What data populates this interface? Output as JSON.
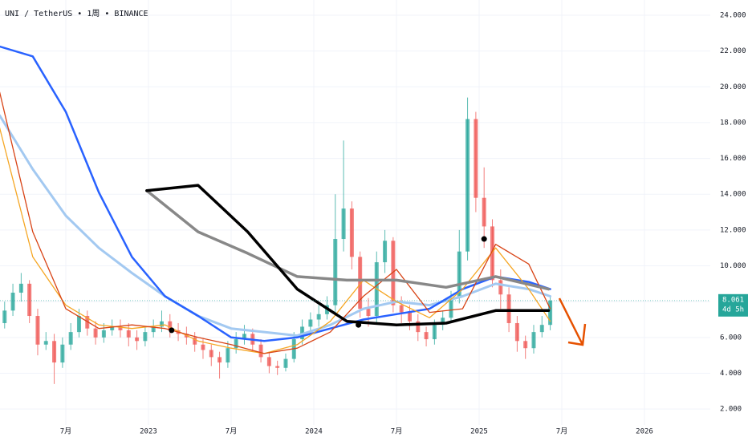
{
  "chart_data": {
    "type": "candlestick",
    "title": "UNI / TetherUS • 1周 • BINANCE",
    "up_color": "#26a69a",
    "down_color": "#ef5350",
    "candles": {
      "x": [
        2022.13,
        2022.18,
        2022.23,
        2022.28,
        2022.33,
        2022.38,
        2022.43,
        2022.48,
        2022.53,
        2022.58,
        2022.63,
        2022.68,
        2022.73,
        2022.78,
        2022.83,
        2022.88,
        2022.93,
        2022.98,
        2023.03,
        2023.08,
        2023.13,
        2023.18,
        2023.23,
        2023.28,
        2023.33,
        2023.38,
        2023.43,
        2023.48,
        2023.53,
        2023.58,
        2023.63,
        2023.68,
        2023.73,
        2023.78,
        2023.83,
        2023.88,
        2023.93,
        2023.98,
        2024.03,
        2024.08,
        2024.13,
        2024.18,
        2024.23,
        2024.28,
        2024.33,
        2024.38,
        2024.43,
        2024.48,
        2024.53,
        2024.58,
        2024.63,
        2024.68,
        2024.73,
        2024.78,
        2024.83,
        2024.88,
        2024.93,
        2024.98,
        2025.03,
        2025.08,
        2025.13,
        2025.18,
        2025.23,
        2025.28,
        2025.33,
        2025.38,
        2025.43
      ],
      "open": [
        6.8,
        7.5,
        8.5,
        9,
        7.2,
        5.6,
        5.8,
        4.6,
        5.6,
        6.3,
        7.2,
        6.5,
        6.0,
        6.4,
        6.6,
        6.4,
        6.0,
        5.8,
        6.3,
        6.6,
        6.9,
        6.4,
        6.2,
        6.0,
        5.6,
        5.3,
        4.9,
        4.6,
        5.4,
        5.9,
        6.2,
        5.6,
        4.9,
        4.4,
        4.3,
        4.8,
        5.9,
        6.6,
        7.0,
        7.3,
        7.8,
        11.5,
        13.2,
        10.5,
        7.6,
        7.2,
        10.2,
        11.4,
        7.8,
        7.4,
        6.9,
        6.3,
        5.9,
        6.7,
        7.1,
        8.2,
        10.8,
        18.2,
        13.8,
        12.2,
        9.2,
        8.4,
        6.8,
        5.8,
        5.4,
        6.3,
        6.7
      ],
      "high": [
        8.0,
        9.0,
        9.6,
        9.2,
        7.6,
        6.3,
        6.2,
        6.0,
        6.8,
        7.6,
        7.5,
        6.9,
        6.8,
        7.0,
        7.0,
        6.8,
        6.4,
        6.6,
        7.0,
        7.5,
        7.3,
        6.8,
        6.6,
        6.3,
        5.9,
        5.6,
        5.2,
        5.8,
        6.3,
        6.7,
        6.5,
        5.9,
        5.2,
        4.7,
        5.1,
        6.3,
        7.0,
        7.4,
        7.8,
        8.3,
        14.0,
        17.0,
        13.6,
        10.8,
        8.2,
        10.8,
        12.0,
        11.6,
        8.3,
        7.8,
        7.3,
        6.6,
        7.0,
        7.5,
        8.6,
        12.0,
        19.4,
        18.6,
        15.5,
        12.6,
        9.8,
        8.8,
        7.2,
        6.1,
        6.7,
        7.2,
        8.3
      ],
      "low": [
        6.5,
        7.2,
        8.0,
        6.8,
        5.0,
        5.3,
        3.4,
        4.3,
        5.3,
        6.0,
        6.1,
        5.6,
        5.7,
        6.1,
        6.0,
        5.5,
        5.3,
        5.5,
        6.0,
        6.3,
        6.0,
        5.8,
        5.6,
        5.2,
        4.8,
        4.4,
        3.7,
        4.3,
        5.1,
        5.6,
        5.2,
        4.6,
        4.0,
        3.9,
        4.1,
        4.6,
        5.6,
        6.2,
        6.6,
        7.0,
        7.4,
        10.8,
        9.8,
        7.1,
        6.6,
        6.8,
        9.6,
        7.4,
        6.8,
        6.4,
        5.8,
        5.5,
        5.6,
        6.4,
        6.8,
        7.9,
        10.3,
        13.0,
        11.0,
        8.8,
        7.6,
        6.3,
        5.2,
        4.8,
        5.1,
        6.0,
        6.4
      ],
      "close": [
        7.5,
        8.5,
        9,
        7.2,
        5.6,
        5.8,
        4.6,
        5.6,
        6.3,
        7.2,
        6.5,
        6.0,
        6.4,
        6.6,
        6.4,
        6.0,
        5.8,
        6.3,
        6.6,
        6.9,
        6.4,
        6.2,
        6.0,
        5.6,
        5.3,
        4.9,
        4.6,
        5.4,
        5.9,
        6.2,
        5.6,
        4.9,
        4.4,
        4.3,
        4.8,
        5.9,
        6.6,
        7.0,
        7.3,
        7.8,
        11.5,
        13.2,
        10.5,
        7.6,
        7.2,
        10.2,
        11.4,
        7.8,
        7.4,
        6.9,
        6.3,
        5.9,
        6.7,
        7.1,
        8.2,
        10.8,
        18.2,
        13.8,
        12.2,
        9.2,
        8.4,
        6.8,
        5.8,
        5.4,
        6.3,
        6.7,
        8.061
      ]
    },
    "series": [
      {
        "color": "#a3c9f1",
        "width": 3,
        "x": [
          2022.1,
          2022.3,
          2022.5,
          2022.7,
          2022.9,
          2023.1,
          2023.3,
          2023.5,
          2023.7,
          2023.9,
          2024.1,
          2024.3,
          2024.5,
          2024.7,
          2024.9,
          2025.1,
          2025.3,
          2025.43
        ],
        "values": [
          18.4,
          15.4,
          12.8,
          11,
          9.6,
          8.3,
          7.2,
          6.5,
          6.3,
          6.1,
          6.7,
          7.6,
          8.0,
          7.8,
          8.3,
          9.0,
          8.7,
          8.3
        ]
      },
      {
        "color": "#2962ff",
        "width": 2.5,
        "x": [
          2022.1,
          2022.3,
          2022.5,
          2022.7,
          2022.9,
          2023.1,
          2023.3,
          2023.5,
          2023.7,
          2023.9,
          2024.1,
          2024.3,
          2024.5,
          2024.7,
          2024.9,
          2025.1,
          2025.3,
          2025.43
        ],
        "values": [
          22.25,
          21.7,
          18.6,
          14.1,
          10.5,
          8.3,
          7.2,
          6.0,
          5.8,
          6.0,
          6.5,
          7.0,
          7.3,
          7.6,
          8.7,
          9.4,
          9.1,
          8.7
        ]
      },
      {
        "color": "#f5a623",
        "width": 1.3,
        "x": [
          2022.1,
          2022.3,
          2022.5,
          2022.7,
          2022.9,
          2023.1,
          2023.3,
          2023.5,
          2023.7,
          2023.9,
          2024.1,
          2024.3,
          2024.5,
          2024.7,
          2024.9,
          2025.1,
          2025.3,
          2025.43
        ],
        "values": [
          17.7,
          10.5,
          7.8,
          6.7,
          6.5,
          6.7,
          5.8,
          5.4,
          5.1,
          5.6,
          6.9,
          9.2,
          8.0,
          7.1,
          8.7,
          11.0,
          8.7,
          6.9
        ]
      },
      {
        "color": "#d84315",
        "width": 1.3,
        "x": [
          2022.1,
          2022.3,
          2022.5,
          2022.7,
          2022.9,
          2023.1,
          2023.3,
          2023.5,
          2023.7,
          2023.9,
          2024.1,
          2024.3,
          2024.5,
          2024.7,
          2024.9,
          2025.1,
          2025.3,
          2025.43
        ],
        "values": [
          19.7,
          11.9,
          7.6,
          6.5,
          6.7,
          6.5,
          6.0,
          5.6,
          5.1,
          5.4,
          6.3,
          8.3,
          9.8,
          7.4,
          7.6,
          11.2,
          10.1,
          7.6
        ]
      },
      {
        "color": "#888888",
        "width": 3.5,
        "x": [
          2022.99,
          2023.3,
          2023.6,
          2023.9,
          2024.2,
          2024.5,
          2024.8,
          2025.1,
          2025.42
        ],
        "values": [
          14.2,
          11.9,
          10.7,
          9.4,
          9.2,
          9.2,
          8.8,
          9.4,
          8.7
        ]
      },
      {
        "color": "#000000",
        "width": 3.5,
        "x": [
          2022.99,
          2023.3,
          2023.6,
          2023.9,
          2024.2,
          2024.5,
          2024.8,
          2025.1,
          2025.42
        ],
        "values": [
          14.2,
          14.5,
          11.9,
          8.7,
          6.9,
          6.7,
          6.8,
          7.5,
          7.5
        ]
      }
    ],
    "markers": {
      "color": "#000000",
      "x": [
        2023.14,
        2024.27,
        2025.03
      ],
      "values": [
        6.4,
        6.7,
        11.5
      ]
    },
    "last_price": 8.061,
    "countdown": "4d 5h",
    "xlim": [
      2022.102,
      2026.398
    ],
    "xticks": [
      {
        "value": 2022.5,
        "label": "7月"
      },
      2023,
      {
        "value": 2023.5,
        "label": "7月"
      },
      2024,
      {
        "value": 2024.5,
        "label": "7月"
      },
      2025,
      {
        "value": 2025.5,
        "label": "7月"
      },
      2026
    ],
    "ylim": [
      1.11,
      24.85
    ],
    "yticks": [
      {
        "value": 2,
        "label": "2.000"
      },
      {
        "value": 4,
        "label": "4.000"
      },
      {
        "value": 6,
        "label": "6.000"
      },
      {
        "value": 8,
        "label": "8.000"
      },
      {
        "value": 10,
        "label": "10.000"
      },
      {
        "value": 12,
        "label": "12.000"
      },
      {
        "value": 14,
        "label": "14.000"
      },
      {
        "value": 16,
        "label": "16.000"
      },
      {
        "value": 18,
        "label": "18.000"
      },
      {
        "value": 20,
        "label": "20.000"
      },
      {
        "value": 22,
        "label": "22.000"
      },
      {
        "value": 24,
        "label": "24.000"
      }
    ],
    "grid": true
  }
}
